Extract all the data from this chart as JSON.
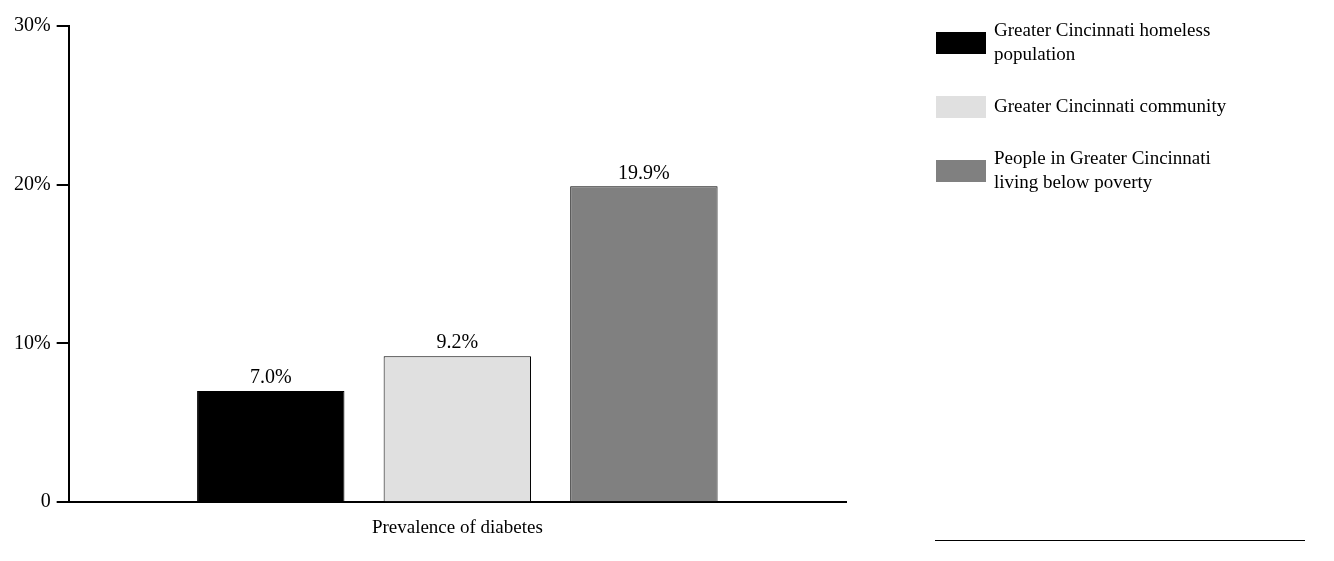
{
  "chart_data": {
    "type": "bar",
    "categories": [
      "Prevalence of diabetes"
    ],
    "series": [
      {
        "name": "Greater Cincinnati homeless population",
        "color": "#000000",
        "values": [
          7.0
        ],
        "value_labels": [
          "7.0%"
        ]
      },
      {
        "name": "Greater Cincinnati community",
        "color": "#e0e0e0",
        "values": [
          9.2
        ],
        "value_labels": [
          "9.2%"
        ]
      },
      {
        "name": "People in Greater Cincinnati living below poverty",
        "color": "#808080",
        "values": [
          19.9
        ],
        "value_labels": [
          "19.9%"
        ]
      }
    ],
    "ylim": [
      0,
      30
    ],
    "yticks": [
      0,
      {
        "value": 10,
        "label": "10%"
      },
      {
        "value": 20,
        "label": "20%"
      },
      {
        "value": 30,
        "label": "30%"
      }
    ],
    "grid": false,
    "legend": "top right"
  }
}
